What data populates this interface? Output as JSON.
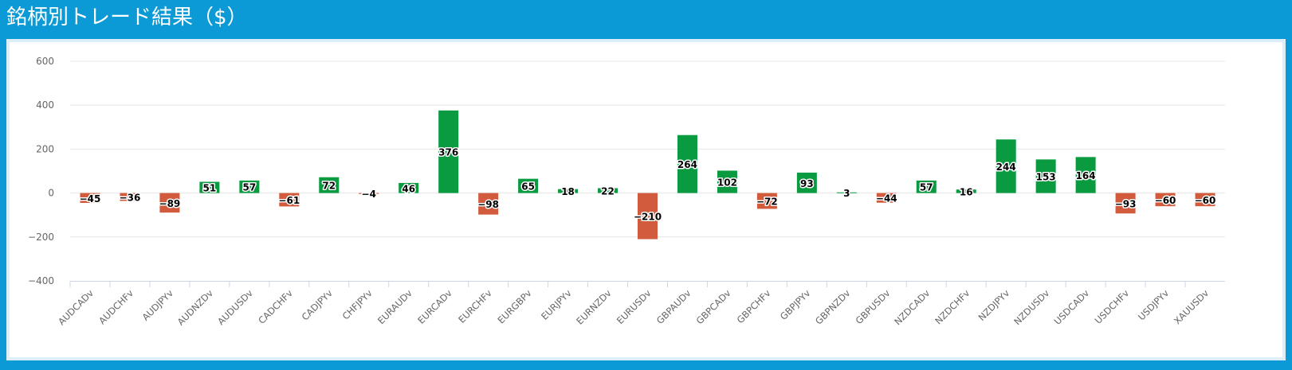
{
  "title": "銘柄別トレード結果（$）",
  "colors": {
    "positive": "#0a9a40",
    "negative": "#d35b3d",
    "grid": "#e6e6e6",
    "axis": "#ccd6eb",
    "header_bg": "#0b9ad6"
  },
  "chart_data": {
    "type": "bar",
    "title": "銘柄別トレード結果（$）",
    "xlabel": "",
    "ylabel": "",
    "ylim": [
      -400,
      600
    ],
    "yticks": [
      600,
      400,
      200,
      0,
      -200,
      -400
    ],
    "grid": true,
    "categories": [
      "AUDCADv",
      "AUDCHFv",
      "AUDJPYv",
      "AUDNZDv",
      "AUDUSDv",
      "CADCHFv",
      "CADJPYv",
      "CHFJPYv",
      "EURAUDv",
      "EURCADv",
      "EURCHFv",
      "EURGBPv",
      "EURJPYv",
      "EURNZDv",
      "EURUSDv",
      "GBPAUDv",
      "GBPCADv",
      "GBPCHFv",
      "GBPJPYv",
      "GBPNZDv",
      "GBPUSDv",
      "NZDCADv",
      "NZDCHFv",
      "NZDJPYv",
      "NZDUSDv",
      "USDCADv",
      "USDCHFv",
      "USDJPYv",
      "XAUUSDv"
    ],
    "values": [
      -45,
      -36,
      -89,
      51,
      57,
      -61,
      72,
      -4,
      46,
      376,
      -98,
      65,
      18,
      22,
      -210,
      264,
      102,
      -72,
      93,
      3,
      -44,
      57,
      16,
      244,
      153,
      164,
      -93,
      -60,
      -60
    ]
  }
}
